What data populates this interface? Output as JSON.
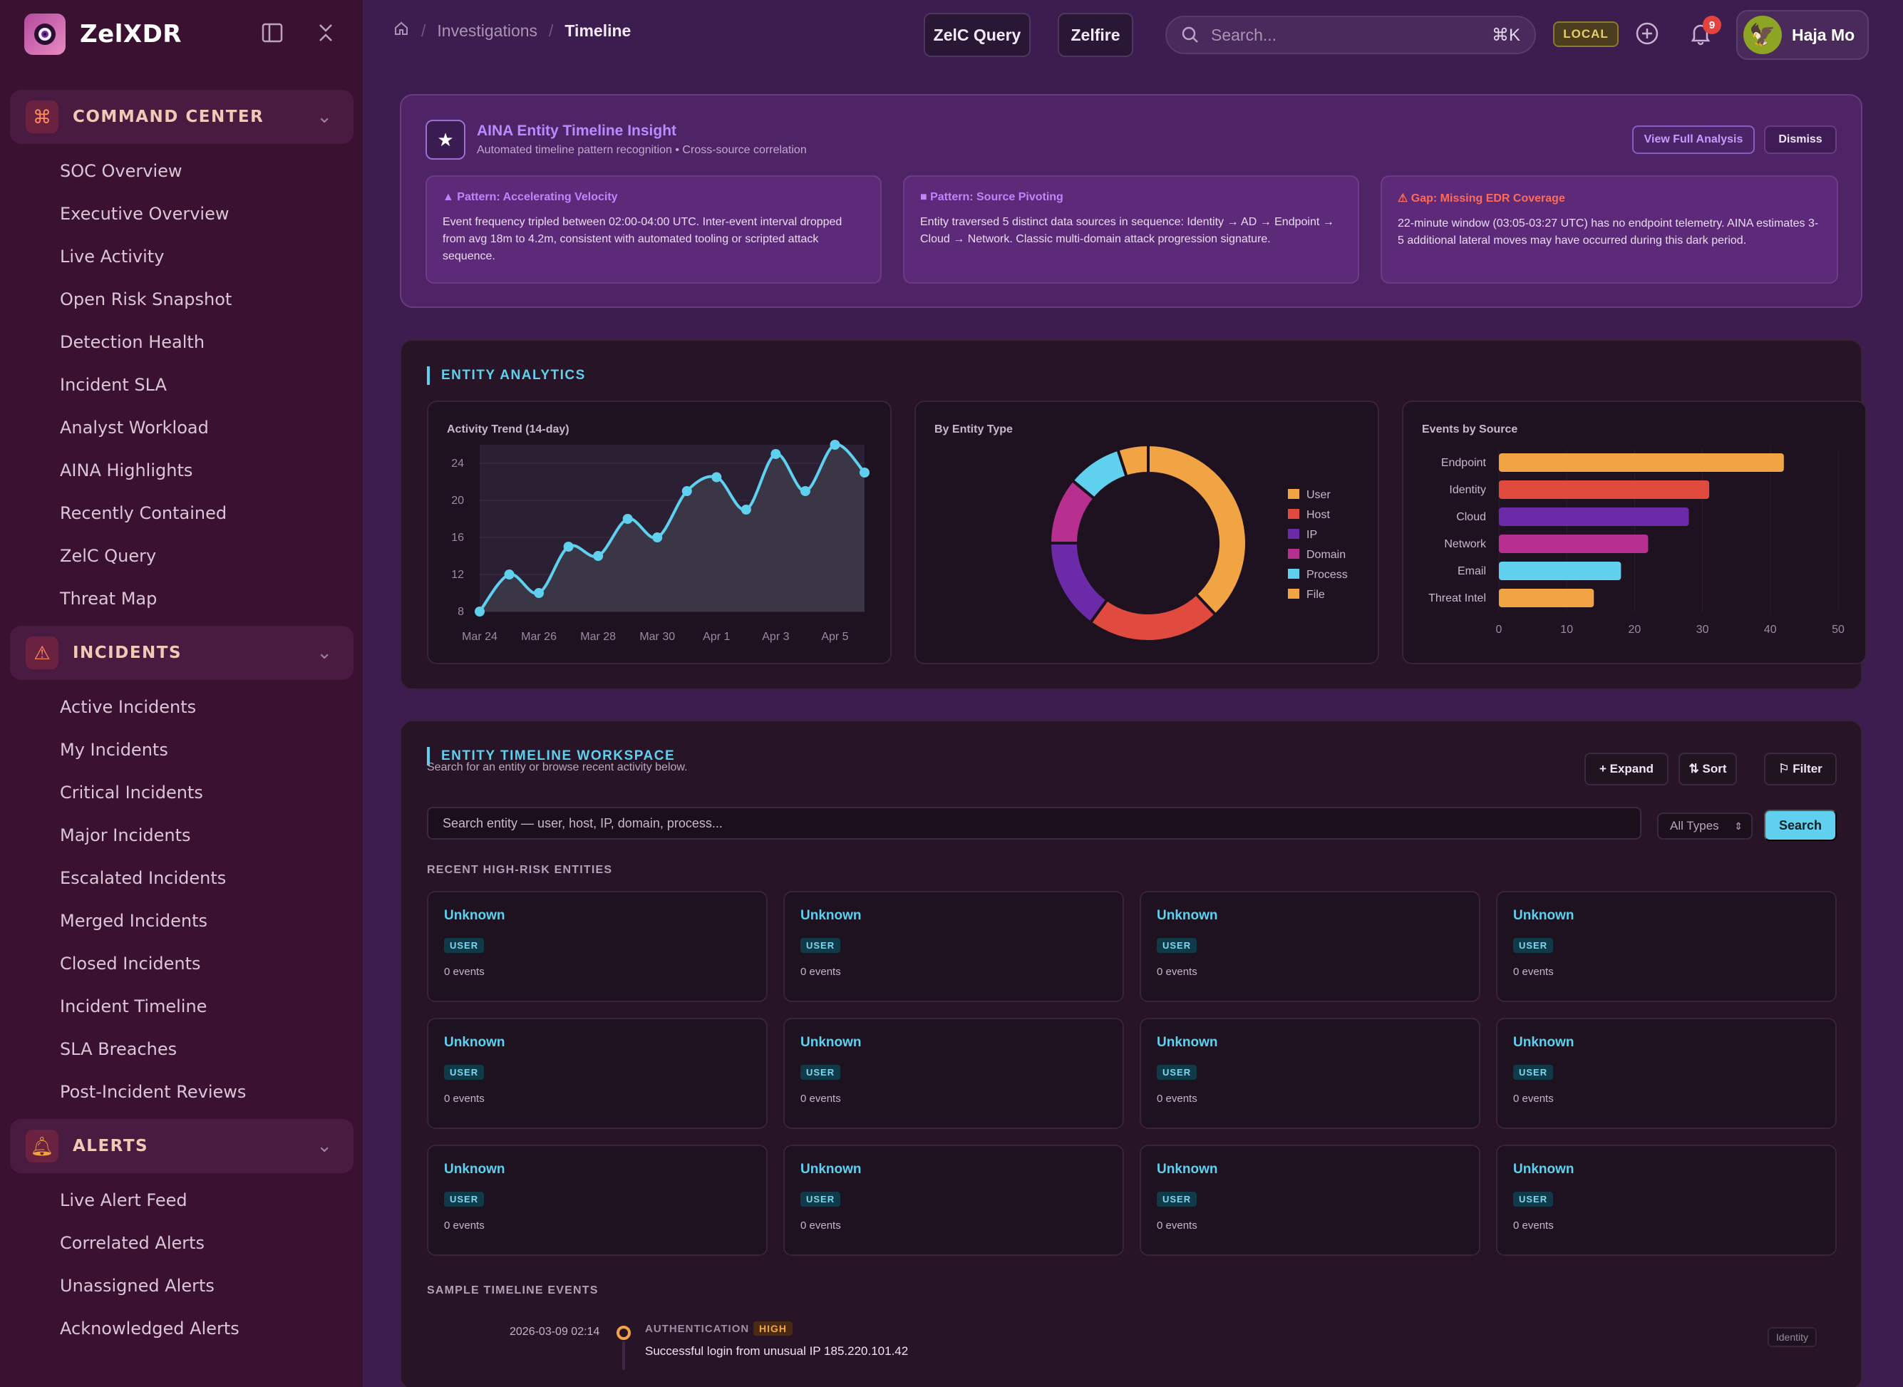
{
  "brand": {
    "name": "ZelXDR"
  },
  "sidebar": {
    "sections": [
      {
        "label": "COMMAND CENTER",
        "items": [
          "SOC Overview",
          "Executive Overview",
          "Live Activity",
          "Open Risk Snapshot",
          "Detection Health",
          "Incident SLA",
          "Analyst Workload",
          "AINA Highlights",
          "Recently Contained",
          "ZelC Query",
          "Threat Map"
        ]
      },
      {
        "label": "INCIDENTS",
        "items": [
          "Active Incidents",
          "My Incidents",
          "Critical Incidents",
          "Major Incidents",
          "Escalated Incidents",
          "Merged Incidents",
          "Closed Incidents",
          "Incident Timeline",
          "SLA Breaches",
          "Post-Incident Reviews"
        ]
      },
      {
        "label": "ALERTS",
        "items": [
          "Live Alert Feed",
          "Correlated Alerts",
          "Unassigned Alerts",
          "Acknowledged Alerts"
        ]
      }
    ]
  },
  "topbar": {
    "breadcrumb": [
      "Investigations",
      "Timeline"
    ],
    "zelc_query": "ZelC Query",
    "zelfire": "Zelfire",
    "search_placeholder": "Search...",
    "shortcut": "⌘K",
    "env": "LOCAL",
    "notification_count": "9",
    "user_name": "Haja Mo"
  },
  "insight": {
    "title": "AINA Entity Timeline Insight",
    "subtitle": "Automated timeline pattern recognition • Cross-source correlation",
    "view_label": "View Full Analysis",
    "dismiss_label": "Dismiss",
    "patterns": [
      {
        "title": "▲ Pattern: Accelerating Velocity",
        "color": "#c084fc",
        "text": "Event frequency tripled between 02:00-04:00 UTC. Inter-event interval dropped from avg 18m to 4.2m, consistent with automated tooling or scripted attack sequence."
      },
      {
        "title": "■ Pattern: Source Pivoting",
        "color": "#c084fc",
        "text": "Entity traversed 5 distinct data sources in sequence: Identity → AD → Endpoint → Cloud → Network. Classic multi-domain attack progression signature."
      },
      {
        "title": "⚠ Gap: Missing EDR Coverage",
        "color": "#ff6b57",
        "text": "22-minute window (03:05-03:27 UTC) has no endpoint telemetry. AINA estimates 3-5 additional lateral moves may have occurred during this dark period."
      }
    ]
  },
  "analytics": {
    "heading": "ENTITY ANALYTICS"
  },
  "chart_data": [
    {
      "type": "area",
      "title": "Activity Trend (14-day)",
      "x": [
        "Mar 24",
        "Mar 25",
        "Mar 26",
        "Mar 27",
        "Mar 28",
        "Mar 29",
        "Mar 30",
        "Mar 31",
        "Apr 1",
        "Apr 2",
        "Apr 3",
        "Apr 4",
        "Apr 5",
        "Apr 6"
      ],
      "x_ticks": [
        "Mar 24",
        "Mar 26",
        "Mar 28",
        "Mar 30",
        "Apr 1",
        "Apr 3",
        "Apr 5"
      ],
      "values": [
        8,
        12,
        10,
        15,
        14,
        18,
        16,
        21,
        22.5,
        19,
        25,
        21,
        26,
        23
      ],
      "ylim": [
        8,
        26
      ],
      "y_ticks": [
        8,
        12,
        16,
        20,
        24
      ],
      "color": "#5fd0ee"
    },
    {
      "type": "pie",
      "title": "By Entity Type",
      "labels": [
        "User",
        "Host",
        "IP",
        "Domain",
        "Process",
        "File"
      ],
      "values": [
        38,
        22,
        15,
        11,
        9,
        5
      ],
      "colors": [
        "#f0a443",
        "#e04a3f",
        "#6b2aa8",
        "#b8308f",
        "#5fd0ee",
        "#f0a443"
      ]
    },
    {
      "type": "bar",
      "orientation": "horizontal",
      "title": "Events by Source",
      "categories": [
        "Endpoint",
        "Identity",
        "Cloud",
        "Network",
        "Email",
        "Threat Intel"
      ],
      "values": [
        42,
        31,
        28,
        22,
        18,
        14
      ],
      "colors": [
        "#f0a443",
        "#e04a3f",
        "#6b2aa8",
        "#b8308f",
        "#5fd0ee",
        "#f0a443"
      ],
      "xlim": [
        0,
        50
      ],
      "x_ticks": [
        0,
        10,
        20,
        30,
        40,
        50
      ]
    }
  ],
  "workspace": {
    "heading": "ENTITY TIMELINE WORKSPACE",
    "subtitle": "Search for an entity or browse recent activity below.",
    "expand_label": "+ Expand",
    "sort_label": "⇅ Sort",
    "filter_label": "⚐ Filter",
    "search_placeholder": "Search entity — user, host, IP, domain, process...",
    "type_select": "All Types",
    "search_button": "Search",
    "recent_heading": "RECENT HIGH-RISK ENTITIES",
    "entities": [
      {
        "name": "Unknown",
        "type": "USER",
        "events": "0 events"
      },
      {
        "name": "Unknown",
        "type": "USER",
        "events": "0 events"
      },
      {
        "name": "Unknown",
        "type": "USER",
        "events": "0 events"
      },
      {
        "name": "Unknown",
        "type": "USER",
        "events": "0 events"
      },
      {
        "name": "Unknown",
        "type": "USER",
        "events": "0 events"
      },
      {
        "name": "Unknown",
        "type": "USER",
        "events": "0 events"
      },
      {
        "name": "Unknown",
        "type": "USER",
        "events": "0 events"
      },
      {
        "name": "Unknown",
        "type": "USER",
        "events": "0 events"
      },
      {
        "name": "Unknown",
        "type": "USER",
        "events": "0 events"
      },
      {
        "name": "Unknown",
        "type": "USER",
        "events": "0 events"
      },
      {
        "name": "Unknown",
        "type": "USER",
        "events": "0 events"
      },
      {
        "name": "Unknown",
        "type": "USER",
        "events": "0 events"
      }
    ],
    "timeline_heading": "SAMPLE TIMELINE EVENTS",
    "events": [
      {
        "time": "2026-03-09 02:14",
        "category": "AUTHENTICATION",
        "severity": "HIGH",
        "description": "Successful login from unusual IP 185.220.101.42",
        "source": "Identity"
      }
    ]
  }
}
